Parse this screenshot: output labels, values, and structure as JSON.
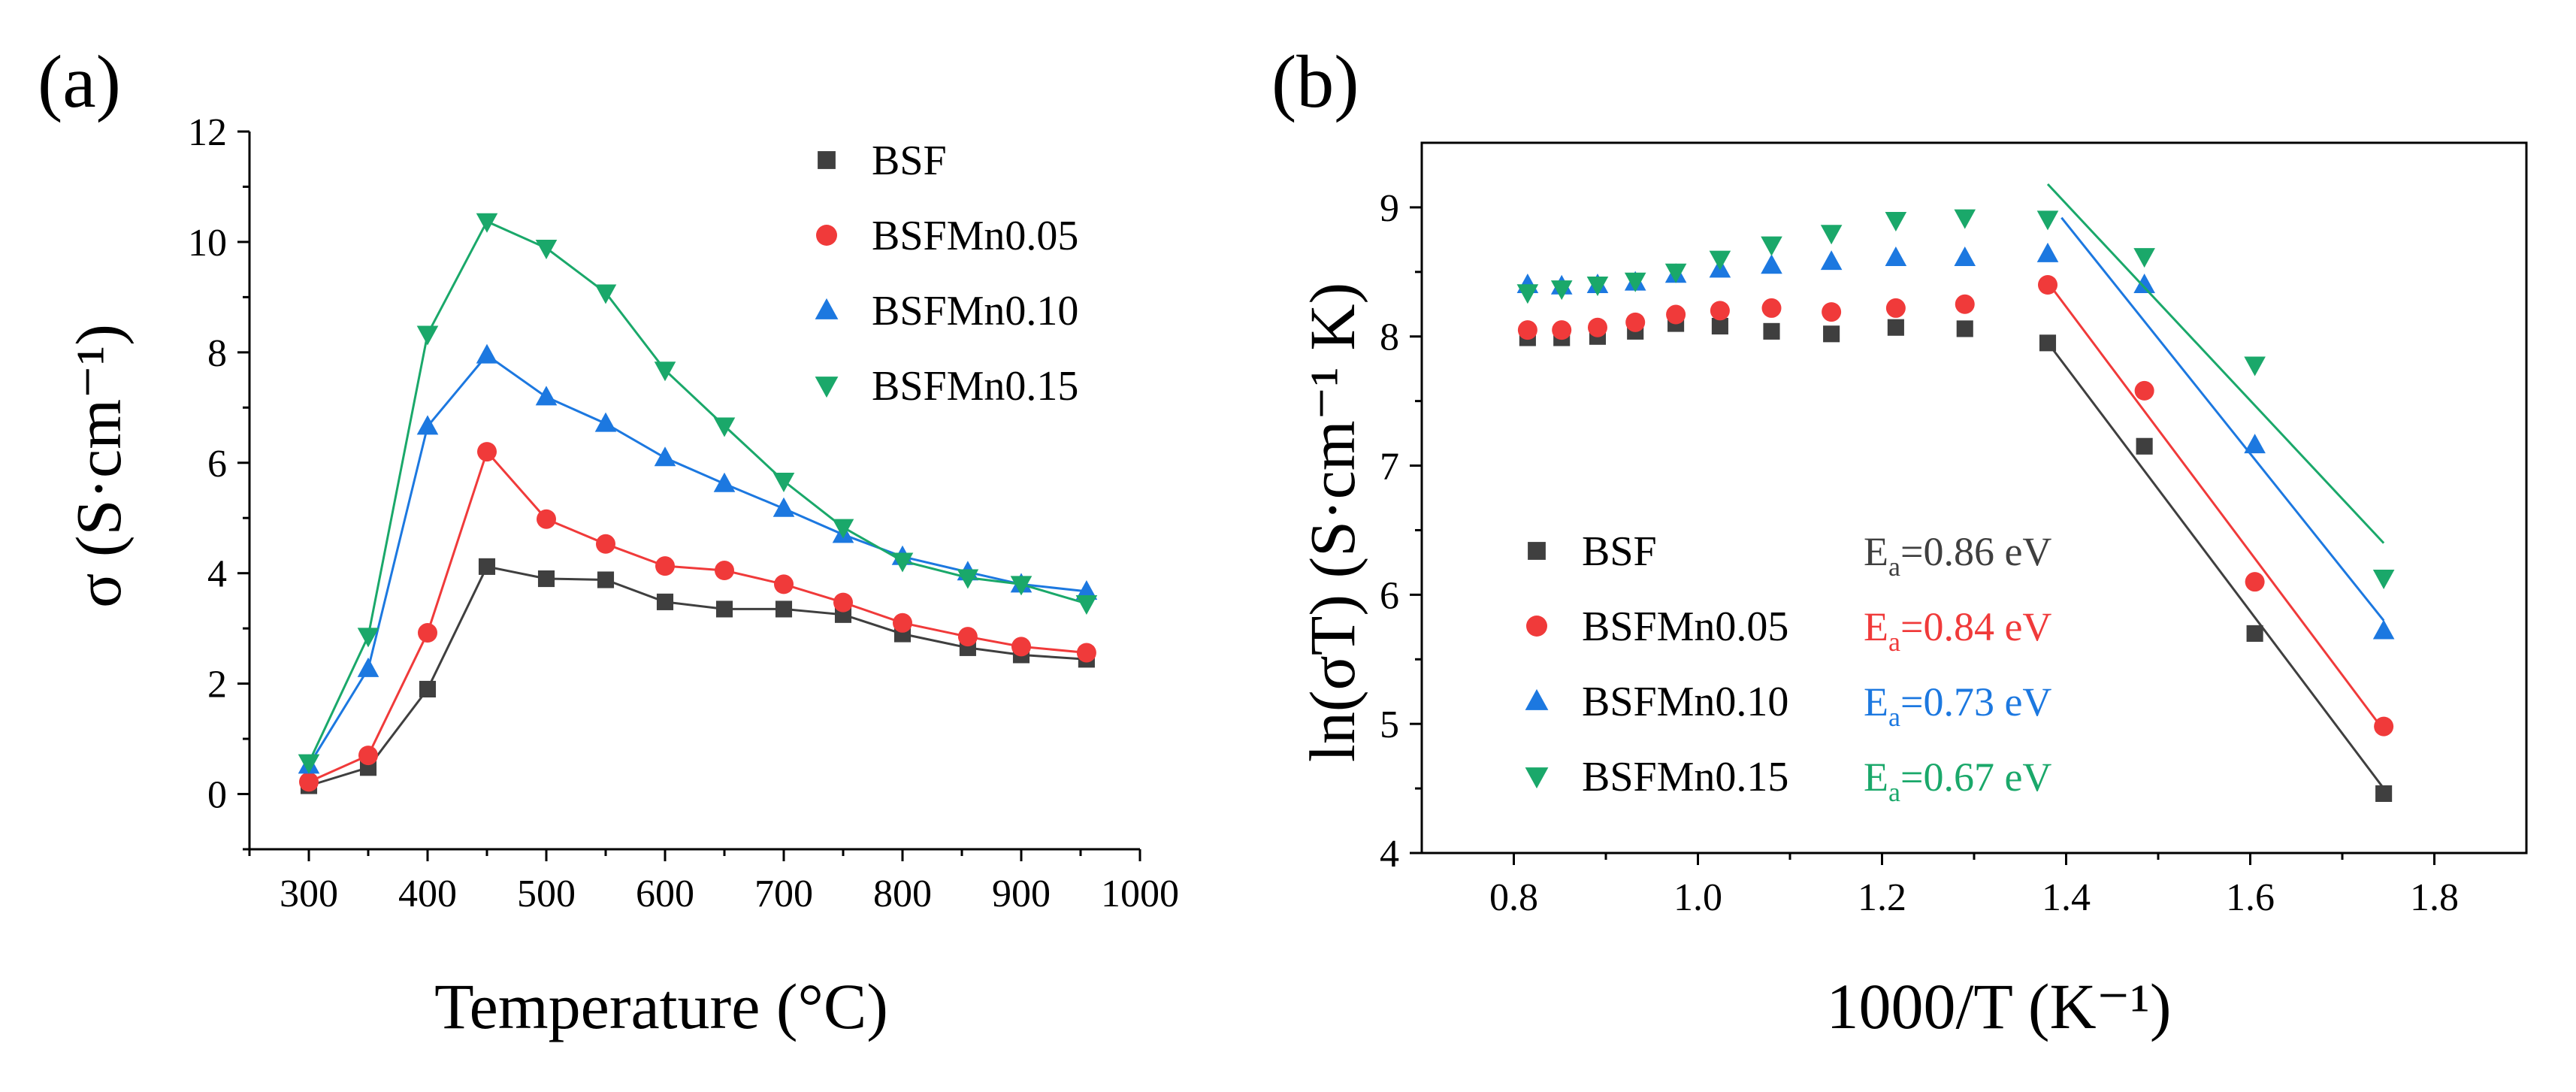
{
  "colors": {
    "BSF": "#3f3f3f",
    "BSFMn0.05": "#f03a3a",
    "BSFMn0.10": "#1c78e0",
    "BSFMn0.15": "#1aa86a"
  },
  "chart_data": [
    {
      "panel_label": "(a)",
      "type": "line",
      "title": "",
      "xlabel": "Temperature (°C)",
      "ylabel": "σ (S·cm⁻¹)",
      "xlim": [
        250,
        1000
      ],
      "ylim": [
        -1,
        12
      ],
      "x_ticks": [
        300,
        400,
        500,
        600,
        700,
        800,
        900,
        1000
      ],
      "y_ticks": [
        0,
        2,
        4,
        6,
        8,
        10,
        12
      ],
      "legend_position": "top-right",
      "x": [
        300,
        350,
        400,
        450,
        500,
        550,
        600,
        650,
        700,
        750,
        800,
        855,
        900,
        955
      ],
      "series": [
        {
          "name": "BSF",
          "marker": "square",
          "values": [
            0.15,
            0.48,
            1.9,
            4.12,
            3.9,
            3.88,
            3.48,
            3.35,
            3.35,
            3.25,
            2.9,
            2.65,
            2.52,
            2.44
          ]
        },
        {
          "name": "BSFMn0.05",
          "marker": "circle",
          "values": [
            0.22,
            0.7,
            2.92,
            6.2,
            4.98,
            4.53,
            4.13,
            4.05,
            3.8,
            3.47,
            3.1,
            2.85,
            2.67,
            2.56
          ]
        },
        {
          "name": "BSFMn0.10",
          "marker": "triangle-up",
          "values": [
            0.52,
            2.27,
            6.66,
            7.95,
            7.19,
            6.71,
            6.09,
            5.62,
            5.17,
            4.7,
            4.3,
            4.02,
            3.8,
            3.67
          ]
        },
        {
          "name": "BSFMn0.15",
          "marker": "triangle-down",
          "values": [
            0.57,
            2.86,
            8.33,
            10.37,
            9.89,
            9.08,
            7.68,
            6.67,
            5.67,
            4.83,
            4.22,
            3.92,
            3.8,
            3.45
          ]
        }
      ]
    },
    {
      "panel_label": "(b)",
      "type": "scatter",
      "title": "",
      "xlabel": "1000/T (K⁻¹)",
      "ylabel": "ln(σT) (S·cm⁻¹ K)",
      "xlim": [
        0.7,
        1.9
      ],
      "ylim": [
        4,
        9.5
      ],
      "x_ticks": [
        0.8,
        1.0,
        1.2,
        1.4,
        1.6,
        1.8
      ],
      "x_tick_labels": [
        "0.8",
        "1.0",
        "1.2",
        "1.4",
        "1.6",
        "1.8"
      ],
      "y_ticks": [
        4,
        5,
        6,
        7,
        8,
        9
      ],
      "legend_position": "bottom-left",
      "x": [
        0.815,
        0.852,
        0.891,
        0.932,
        0.976,
        1.024,
        1.08,
        1.145,
        1.215,
        1.29,
        1.38,
        1.485,
        1.605,
        1.745
      ],
      "series": [
        {
          "name": "BSF",
          "marker": "square",
          "ea_label": "E",
          "ea_sub": "a",
          "ea_value": "=0.86 eV",
          "values": [
            7.99,
            7.99,
            8.0,
            8.04,
            8.1,
            8.08,
            8.04,
            8.02,
            8.07,
            8.06,
            7.95,
            7.15,
            5.7,
            4.46
          ],
          "fit_x": [
            1.375,
            1.745
          ],
          "fit_y": [
            8.0,
            4.5
          ]
        },
        {
          "name": "BSFMn0.05",
          "marker": "circle",
          "ea_label": "E",
          "ea_sub": "a",
          "ea_value": "=0.84 eV",
          "values": [
            8.05,
            8.05,
            8.07,
            8.11,
            8.17,
            8.2,
            8.22,
            8.19,
            8.22,
            8.25,
            8.4,
            7.58,
            6.1,
            4.98
          ],
          "fit_x": [
            1.38,
            1.745
          ],
          "fit_y": [
            8.42,
            4.95
          ]
        },
        {
          "name": "BSFMn0.10",
          "marker": "triangle-up",
          "ea_label": "E",
          "ea_sub": "a",
          "ea_value": "=0.73 eV",
          "values": [
            8.4,
            8.39,
            8.4,
            8.42,
            8.48,
            8.52,
            8.55,
            8.58,
            8.61,
            8.61,
            8.64,
            8.4,
            7.16,
            5.72
          ],
          "fit_x": [
            1.395,
            1.745
          ],
          "fit_y": [
            8.92,
            5.8
          ]
        },
        {
          "name": "BSFMn0.15",
          "marker": "triangle-down",
          "ea_label": "E",
          "ea_sub": "a",
          "ea_value": "=0.67 eV",
          "values": [
            8.34,
            8.37,
            8.4,
            8.43,
            8.5,
            8.6,
            8.71,
            8.8,
            8.9,
            8.92,
            8.91,
            8.62,
            7.78,
            6.13
          ],
          "fit_x": [
            1.38,
            1.745
          ],
          "fit_y": [
            9.18,
            6.4
          ]
        }
      ]
    }
  ]
}
